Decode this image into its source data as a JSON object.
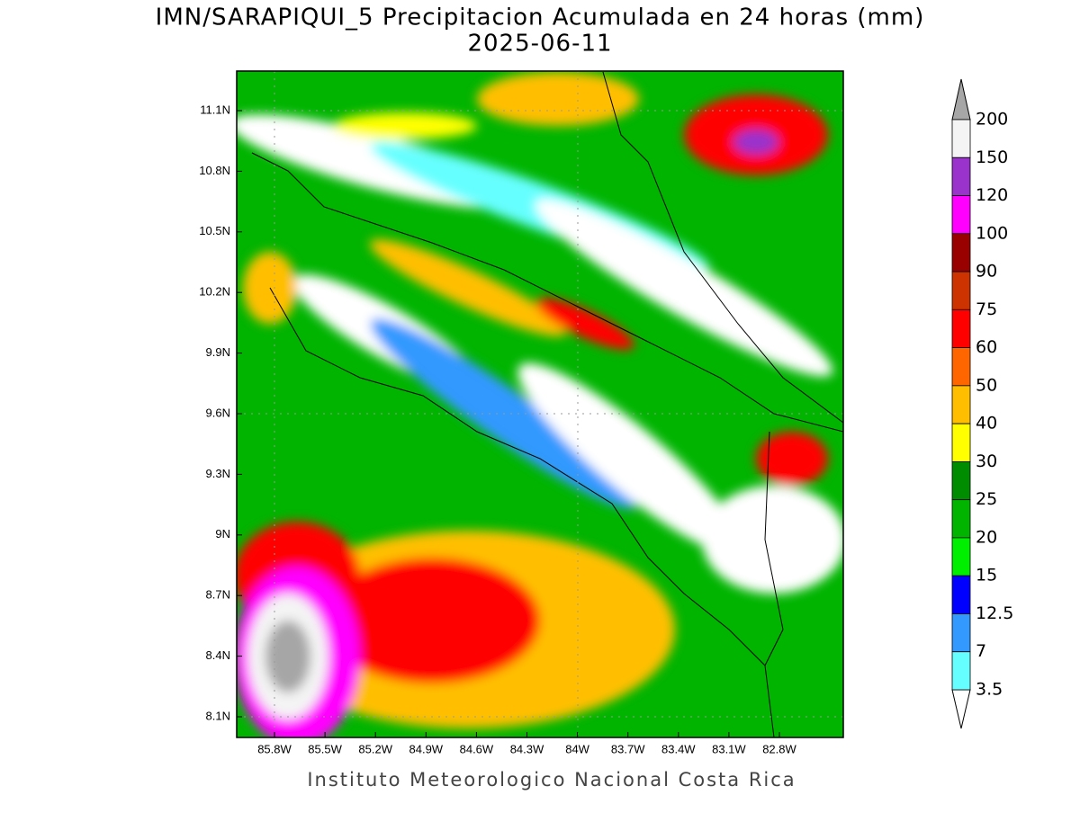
{
  "header": {
    "title": "IMN/SARAPIQUI_5 Precipitacion Acumulada en 24 horas (mm)",
    "subtitle": "2025-06-11"
  },
  "map": {
    "lat_ticks": [
      "11.1N",
      "10.8N",
      "10.5N",
      "10.2N",
      "9.9N",
      "9.6N",
      "9.3N",
      "9N",
      "8.7N",
      "8.4N",
      "8.1N"
    ],
    "lon_ticks": [
      "85.8W",
      "85.5W",
      "85.2W",
      "84.9W",
      "84.6W",
      "84.3W",
      "84W",
      "83.7W",
      "83.4W",
      "83.1W",
      "82.8W"
    ]
  },
  "colorbar": {
    "levels": [
      200,
      150,
      120,
      100,
      90,
      75,
      60,
      50,
      40,
      30,
      25,
      20,
      15,
      12.5,
      7,
      3.5
    ],
    "colors": [
      "#f4f4f4",
      "#9933cc",
      "#ff00ff",
      "#990000",
      "#cc3300",
      "#ff0000",
      "#ff6600",
      "#ffbf00",
      "#ffff00",
      "#008c00",
      "#00b400",
      "#00ee00",
      "#0000ff",
      "#3399ff",
      "#66ffff"
    ],
    "over_color": "#a6a6a6",
    "under_color": "#ffffff"
  },
  "footer": "Instituto Meteorologico Nacional Costa Rica"
}
